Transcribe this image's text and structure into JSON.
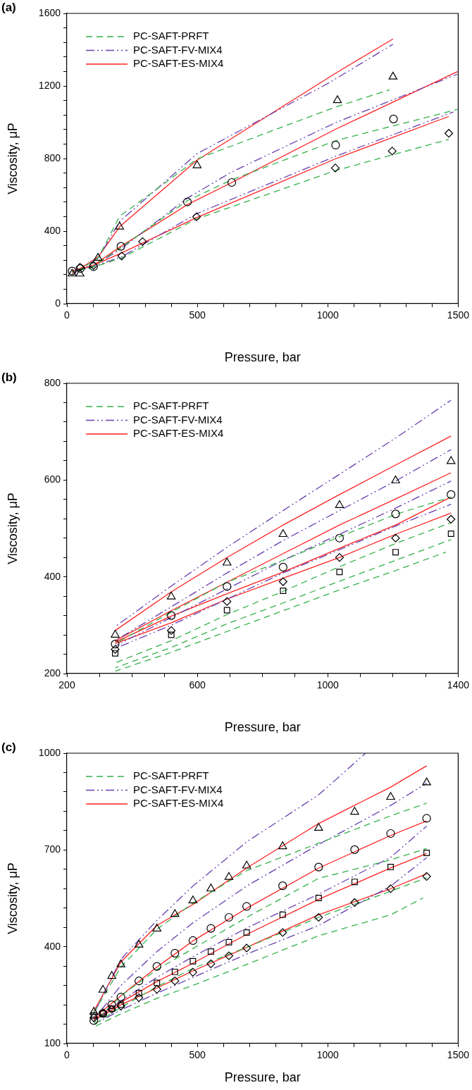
{
  "chart_data": [
    {
      "type": "line",
      "title": "(a)",
      "xlabel": "Pressure, bar",
      "ylabel": "Viscosity, μP",
      "legend": "top left",
      "xlim": [
        0,
        1500
      ],
      "ylim": [
        0,
        1600
      ],
      "xticks": [
        0,
        {
          "value": 100,
          "label": null
        },
        {
          "value": 200,
          "label": null
        },
        {
          "value": 300,
          "label": null
        },
        {
          "value": 400,
          "label": null
        },
        500,
        {
          "value": 600,
          "label": null
        },
        {
          "value": 700,
          "label": null
        },
        {
          "value": 800,
          "label": null
        },
        {
          "value": 900,
          "label": null
        },
        1000,
        {
          "value": 1100,
          "label": null
        },
        {
          "value": 1200,
          "label": null
        },
        {
          "value": 1300,
          "label": null
        },
        {
          "value": 1400,
          "label": null
        },
        1500
      ],
      "yticks": [
        0,
        {
          "value": 80,
          "label": null
        },
        {
          "value": 160,
          "label": null
        },
        {
          "value": 240,
          "label": null
        },
        {
          "value": 320,
          "label": null
        },
        400,
        {
          "value": 480,
          "label": null
        },
        {
          "value": 560,
          "label": null
        },
        {
          "value": 640,
          "label": null
        },
        {
          "value": 720,
          "label": null
        },
        800,
        {
          "value": 880,
          "label": null
        },
        {
          "value": 960,
          "label": null
        },
        {
          "value": 1040,
          "label": null
        },
        {
          "value": 1120,
          "label": null
        },
        1200,
        {
          "value": 1280,
          "label": null
        },
        {
          "value": 1360,
          "label": null
        },
        {
          "value": 1440,
          "label": null
        },
        {
          "value": 1520,
          "label": null
        },
        1600
      ],
      "series": [
        {
          "type": "scatter",
          "marker": "triangle",
          "color": "#000000",
          "x": [
            20,
            50,
            119,
            202,
            499,
            1037,
            1250
          ],
          "values": [
            165,
            165,
            252,
            424,
            762,
            1121,
            1251
          ]
        },
        {
          "type": "scatter",
          "marker": "circle",
          "color": "#000000",
          "x": [
            20,
            52,
            102,
            207,
            462,
            632,
            1030,
            1252
          ],
          "values": [
            180,
            194,
            204,
            316,
            561,
            668,
            874,
            1018
          ]
        },
        {
          "type": "scatter",
          "marker": "diamond",
          "color": "#000000",
          "x": [
            50,
            102,
            210,
            290,
            497,
            1029,
            1247,
            1464
          ],
          "values": [
            201,
            211,
            263,
            342,
            479,
            748,
            841,
            939
          ]
        },
        {
          "type": "line",
          "name": "PC-SAFT-PRFT",
          "line_style": "dashed",
          "color": "#33b14a",
          "x": [
            20,
            120,
            202,
            332,
            499,
            1032,
            1237
          ],
          "values": [
            160,
            252,
            482,
            618,
            798,
            1085,
            1179
          ]
        },
        {
          "type": "line",
          "line_style": "dashed",
          "color": "#33b14a",
          "x": [
            20,
            100,
            207,
            462,
            632,
            1032,
            1497
          ],
          "values": [
            175,
            205,
            309,
            568,
            683,
            899,
            1071
          ]
        },
        {
          "type": "line",
          "line_style": "dashed",
          "color": "#33b14a",
          "x": [
            20,
            100,
            210,
            497,
            1029,
            1464
          ],
          "values": [
            175,
            200,
            252,
            467,
            733,
            906
          ]
        },
        {
          "type": "line",
          "name": "PC-SAFT-FV-MIX4",
          "line_style": "dashdot",
          "color": "#6a3fb0",
          "x": [
            20,
            120,
            202,
            499,
            1002,
            1250
          ],
          "values": [
            165,
            250,
            453,
            827,
            1215,
            1430
          ]
        },
        {
          "type": "line",
          "line_style": "dashdot",
          "color": "#6a3fb0",
          "x": [
            20,
            100,
            207,
            462,
            632,
            1032,
            1497
          ],
          "values": [
            175,
            205,
            302,
            582,
            726,
            999,
            1265
          ]
        },
        {
          "type": "line",
          "line_style": "dashdot",
          "color": "#6a3fb0",
          "x": [
            20,
            100,
            210,
            497,
            1029,
            1482
          ],
          "values": [
            175,
            205,
            259,
            496,
            812,
            1057
          ]
        },
        {
          "type": "line",
          "name": "PC-SAFT-ES-MIX4",
          "line_style": "solid",
          "color": "#ff2020",
          "x": [
            20,
            120,
            202,
            499,
            1032,
            1250
          ],
          "values": [
            165,
            258,
            424,
            791,
            1272,
            1459
          ]
        },
        {
          "type": "line",
          "line_style": "solid",
          "color": "#ff2020",
          "x": [
            20,
            100,
            207,
            462,
            632,
            1032,
            1497
          ],
          "values": [
            180,
            210,
            316,
            546,
            668,
            963,
            1279
          ]
        },
        {
          "type": "line",
          "line_style": "solid",
          "color": "#ff2020",
          "x": [
            20,
            100,
            210,
            497,
            1029,
            1464
          ],
          "values": [
            180,
            210,
            280,
            474,
            798,
            1032
          ]
        }
      ]
    },
    {
      "type": "line",
      "title": "(b)",
      "xlabel": "Pressure, bar",
      "ylabel": "Viscosity, μP",
      "legend": "top left",
      "xlim": [
        200,
        1400
      ],
      "ylim": [
        200,
        800
      ],
      "xticks": [
        200,
        {
          "value": 300,
          "label": null
        },
        {
          "value": 400,
          "label": null
        },
        {
          "value": 500,
          "label": null
        },
        600,
        {
          "value": 700,
          "label": null
        },
        {
          "value": 800,
          "label": null
        },
        {
          "value": 900,
          "label": null
        },
        1000,
        {
          "value": 1100,
          "label": null
        },
        {
          "value": 1200,
          "label": null
        },
        {
          "value": 1300,
          "label": null
        },
        1400
      ],
      "yticks": [
        200,
        {
          "value": 240,
          "label": null
        },
        {
          "value": 280,
          "label": null
        },
        {
          "value": 320,
          "label": null
        },
        {
          "value": 360,
          "label": null
        },
        400,
        {
          "value": 440,
          "label": null
        },
        {
          "value": 480,
          "label": null
        },
        {
          "value": 520,
          "label": null
        },
        {
          "value": 560,
          "label": null
        },
        600,
        {
          "value": 640,
          "label": null
        },
        {
          "value": 680,
          "label": null
        },
        {
          "value": 720,
          "label": null
        },
        {
          "value": 760,
          "label": null
        },
        800
      ],
      "series": [
        {
          "type": "scatter",
          "marker": "triangle",
          "color": "#000000",
          "x": [
            348,
            520,
            691,
            863,
            1036,
            1208,
            1378
          ],
          "values": [
            280,
            359,
            429,
            488,
            548,
            599,
            639
          ]
        },
        {
          "type": "scatter",
          "marker": "circle",
          "color": "#000000",
          "x": [
            348,
            520,
            691,
            863,
            1036,
            1208,
            1378
          ],
          "values": [
            261,
            320,
            380,
            420,
            480,
            530,
            570
          ]
        },
        {
          "type": "scatter",
          "marker": "diamond",
          "color": "#000000",
          "x": [
            348,
            520,
            691,
            863,
            1036,
            1208,
            1378
          ],
          "values": [
            250,
            289,
            349,
            390,
            440,
            480,
            519
          ]
        },
        {
          "type": "scatter",
          "marker": "square",
          "color": "#000000",
          "x": [
            348,
            520,
            691,
            863,
            1036,
            1208,
            1378
          ],
          "values": [
            242,
            280,
            331,
            371,
            410,
            451,
            489
          ]
        },
        {
          "type": "line",
          "name": "PC-SAFT-PRFT",
          "line_style": "dashed",
          "color": "#33b14a",
          "x": [
            348,
            520,
            691,
            863,
            1036,
            1208,
            1378
          ],
          "values": [
            262,
            327,
            389,
            434,
            483,
            529,
            565
          ]
        },
        {
          "type": "line",
          "line_style": "dashed",
          "color": "#33b14a",
          "x": [
            348,
            520,
            691,
            863,
            1036,
            1208,
            1378
          ],
          "values": [
            222,
            268,
            322,
            370,
            421,
            469,
            512
          ]
        },
        {
          "type": "line",
          "line_style": "dashed",
          "color": "#33b14a",
          "x": [
            348,
            520,
            691,
            863,
            1036,
            1208,
            1378
          ],
          "values": [
            212,
            254,
            303,
            346,
            391,
            434,
            477
          ]
        },
        {
          "type": "line",
          "line_style": "dashed",
          "color": "#33b14a",
          "x": [
            348,
            520,
            691,
            863,
            1036,
            1208,
            1362
          ],
          "values": [
            205,
            244,
            287,
            330,
            373,
            413,
            451
          ]
        },
        {
          "type": "line",
          "name": "PC-SAFT-FV-MIX4",
          "line_style": "dashdot",
          "color": "#6a3fb0",
          "x": [
            348,
            520,
            691,
            863,
            1036,
            1208,
            1378
          ],
          "values": [
            297,
            381,
            461,
            537,
            612,
            687,
            765
          ]
        },
        {
          "type": "line",
          "line_style": "dashdot",
          "color": "#6a3fb0",
          "x": [
            348,
            520,
            691,
            863,
            1036,
            1208,
            1378
          ],
          "values": [
            268,
            338,
            408,
            475,
            537,
            598,
            663
          ]
        },
        {
          "type": "line",
          "line_style": "dashdot",
          "color": "#6a3fb0",
          "x": [
            348,
            520,
            691,
            863,
            1036,
            1208,
            1378
          ],
          "values": [
            257,
            316,
            375,
            434,
            488,
            542,
            598
          ]
        },
        {
          "type": "line",
          "line_style": "dashdot",
          "color": "#6a3fb0",
          "x": [
            348,
            520,
            691,
            863,
            1036,
            1208,
            1378
          ],
          "values": [
            252,
            300,
            354,
            408,
            456,
            505,
            550
          ]
        },
        {
          "type": "line",
          "name": "PC-SAFT-ES-MIX4",
          "line_style": "solid",
          "color": "#ff2020",
          "x": [
            348,
            520,
            691,
            863,
            1036,
            1208,
            1378
          ],
          "values": [
            289,
            369,
            440,
            507,
            570,
            631,
            691
          ]
        },
        {
          "type": "line",
          "line_style": "solid",
          "color": "#ff2020",
          "x": [
            348,
            520,
            691,
            863,
            1036,
            1208,
            1378
          ],
          "values": [
            268,
            330,
            389,
            448,
            507,
            561,
            615
          ]
        },
        {
          "type": "line",
          "line_style": "solid",
          "color": "#ff2020",
          "x": [
            348,
            520,
            691,
            863,
            1036,
            1208,
            1378
          ],
          "values": [
            265,
            319,
            365,
            410,
            459,
            507,
            565
          ]
        },
        {
          "type": "line",
          "line_style": "solid",
          "color": "#ff2020",
          "x": [
            348,
            520,
            691,
            863,
            1036,
            1208,
            1378
          ],
          "values": [
            262,
            305,
            354,
            397,
            440,
            488,
            532
          ]
        }
      ]
    },
    {
      "type": "line",
      "title": "(c)",
      "xlabel": "Pressure, bar",
      "ylabel": "Viscosity, μP",
      "legend": "top left",
      "xlim": [
        0,
        1500
      ],
      "ylim": [
        100,
        1000
      ],
      "xticks": [
        0,
        {
          "value": 100,
          "label": null
        },
        {
          "value": 200,
          "label": null
        },
        {
          "value": 300,
          "label": null
        },
        {
          "value": 400,
          "label": null
        },
        500,
        {
          "value": 600,
          "label": null
        },
        {
          "value": 700,
          "label": null
        },
        {
          "value": 800,
          "label": null
        },
        {
          "value": 900,
          "label": null
        },
        1000,
        {
          "value": 1100,
          "label": null
        },
        {
          "value": 1200,
          "label": null
        },
        {
          "value": 1300,
          "label": null
        },
        {
          "value": 1400,
          "label": null
        },
        1500
      ],
      "yticks": [
        100,
        {
          "value": 160,
          "label": null
        },
        {
          "value": 220,
          "label": null
        },
        {
          "value": 280,
          "label": null
        },
        {
          "value": 340,
          "label": null
        },
        400,
        {
          "value": 460,
          "label": null
        },
        {
          "value": 520,
          "label": null
        },
        {
          "value": 580,
          "label": null
        },
        {
          "value": 640,
          "label": null
        },
        700,
        {
          "value": 760,
          "label": null
        },
        {
          "value": 820,
          "label": null
        },
        {
          "value": 880,
          "label": null
        },
        {
          "value": 940,
          "label": null
        },
        1000
      ],
      "series": [
        {
          "type": "scatter",
          "marker": "triangle",
          "color": "#000000",
          "x": [
            103,
            138,
            172,
            207,
            276,
            345,
            414,
            483,
            552,
            621,
            689,
            827,
            965,
            1103,
            1241,
            1379
          ],
          "values": [
            198,
            266,
            309,
            345,
            406,
            456,
            501,
            543,
            580,
            616,
            651,
            711,
            768,
            818,
            864,
            909
          ]
        },
        {
          "type": "scatter",
          "marker": "circle",
          "color": "#000000",
          "x": [
            103,
            138,
            172,
            207,
            276,
            345,
            414,
            483,
            552,
            621,
            689,
            827,
            965,
            1103,
            1241,
            1379
          ],
          "values": [
            171,
            193,
            220,
            244,
            294,
            339,
            380,
            419,
            457,
            491,
            525,
            589,
            647,
            701,
            751,
            798
          ]
        },
        {
          "type": "scatter",
          "marker": "square",
          "color": "#000000",
          "x": [
            103,
            138,
            172,
            207,
            276,
            345,
            414,
            483,
            552,
            621,
            689,
            827,
            965,
            1103,
            1241,
            1379
          ],
          "values": [
            187,
            193,
            208,
            220,
            256,
            288,
            322,
            355,
            385,
            414,
            444,
            499,
            551,
            601,
            647,
            691
          ]
        },
        {
          "type": "scatter",
          "marker": "diamond",
          "color": "#000000",
          "x": [
            103,
            138,
            172,
            207,
            276,
            345,
            414,
            483,
            552,
            621,
            689,
            827,
            965,
            1103,
            1241,
            1379
          ],
          "values": [
            180,
            195,
            206,
            216,
            242,
            268,
            294,
            321,
            347,
            372,
            396,
            444,
            491,
            537,
            580,
            618
          ]
        },
        {
          "type": "line",
          "name": "PC-SAFT-PRFT",
          "line_style": "dashed",
          "color": "#33b14a",
          "x": [
            103,
            207,
            345,
            483,
            689,
            965,
            1241,
            1379
          ],
          "values": [
            196,
            337,
            454,
            535,
            636,
            721,
            806,
            845
          ]
        },
        {
          "type": "line",
          "line_style": "dashed",
          "color": "#33b14a",
          "x": [
            103,
            207,
            345,
            483,
            689,
            965,
            1241,
            1379
          ],
          "values": [
            163,
            248,
            329,
            394,
            491,
            612,
            669,
            705
          ]
        },
        {
          "type": "line",
          "line_style": "dashed",
          "color": "#33b14a",
          "x": [
            103,
            207,
            345,
            483,
            689,
            965,
            1241,
            1379
          ],
          "values": [
            159,
            212,
            276,
            333,
            398,
            491,
            572,
            614
          ]
        },
        {
          "type": "line",
          "line_style": "dashed",
          "color": "#33b14a",
          "x": [
            103,
            207,
            345,
            483,
            689,
            965,
            1241,
            1365
          ],
          "values": [
            151,
            192,
            240,
            280,
            345,
            434,
            499,
            551
          ]
        },
        {
          "type": "line",
          "name": "PC-SAFT-FV-MIX4",
          "line_style": "dashdot",
          "color": "#6a3fb0",
          "x": [
            103,
            207,
            345,
            483,
            689,
            965,
            1145
          ],
          "values": [
            192,
            361,
            482,
            588,
            725,
            871,
            1000
          ]
        },
        {
          "type": "line",
          "line_style": "dashdot",
          "color": "#6a3fb0",
          "x": [
            103,
            207,
            345,
            483,
            689,
            965,
            1241,
            1379
          ],
          "values": [
            175,
            280,
            385,
            474,
            588,
            717,
            838,
            907
          ]
        },
        {
          "type": "line",
          "line_style": "dashdot",
          "color": "#6a3fb0",
          "x": [
            103,
            207,
            345,
            483,
            689,
            965,
            1241,
            1379
          ],
          "values": [
            167,
            232,
            305,
            369,
            458,
            563,
            677,
            774
          ]
        },
        {
          "type": "line",
          "line_style": "dashdot",
          "color": "#6a3fb0",
          "x": [
            103,
            207,
            345,
            483,
            689,
            965,
            1241,
            1379
          ],
          "values": [
            159,
            204,
            256,
            305,
            377,
            466,
            588,
            676
          ]
        },
        {
          "type": "line",
          "name": "PC-SAFT-ES-MIX4",
          "line_style": "solid",
          "color": "#ff2020",
          "x": [
            103,
            207,
            345,
            483,
            689,
            965,
            1241,
            1379
          ],
          "values": [
            200,
            353,
            466,
            531,
            644,
            782,
            895,
            961
          ]
        },
        {
          "type": "line",
          "line_style": "solid",
          "color": "#ff2020",
          "x": [
            103,
            207,
            345,
            483,
            689,
            965,
            1241,
            1379
          ],
          "values": [
            179,
            248,
            337,
            418,
            519,
            644,
            745,
            790
          ]
        },
        {
          "type": "line",
          "line_style": "solid",
          "color": "#ff2020",
          "x": [
            103,
            207,
            345,
            483,
            689,
            965,
            1241,
            1379
          ],
          "values": [
            175,
            228,
            292,
            349,
            438,
            547,
            644,
            689
          ]
        },
        {
          "type": "line",
          "line_style": "solid",
          "color": "#ff2020",
          "x": [
            103,
            207,
            345,
            483,
            689,
            965,
            1241,
            1379
          ],
          "values": [
            171,
            220,
            272,
            325,
            398,
            499,
            580,
            626
          ]
        }
      ]
    }
  ]
}
